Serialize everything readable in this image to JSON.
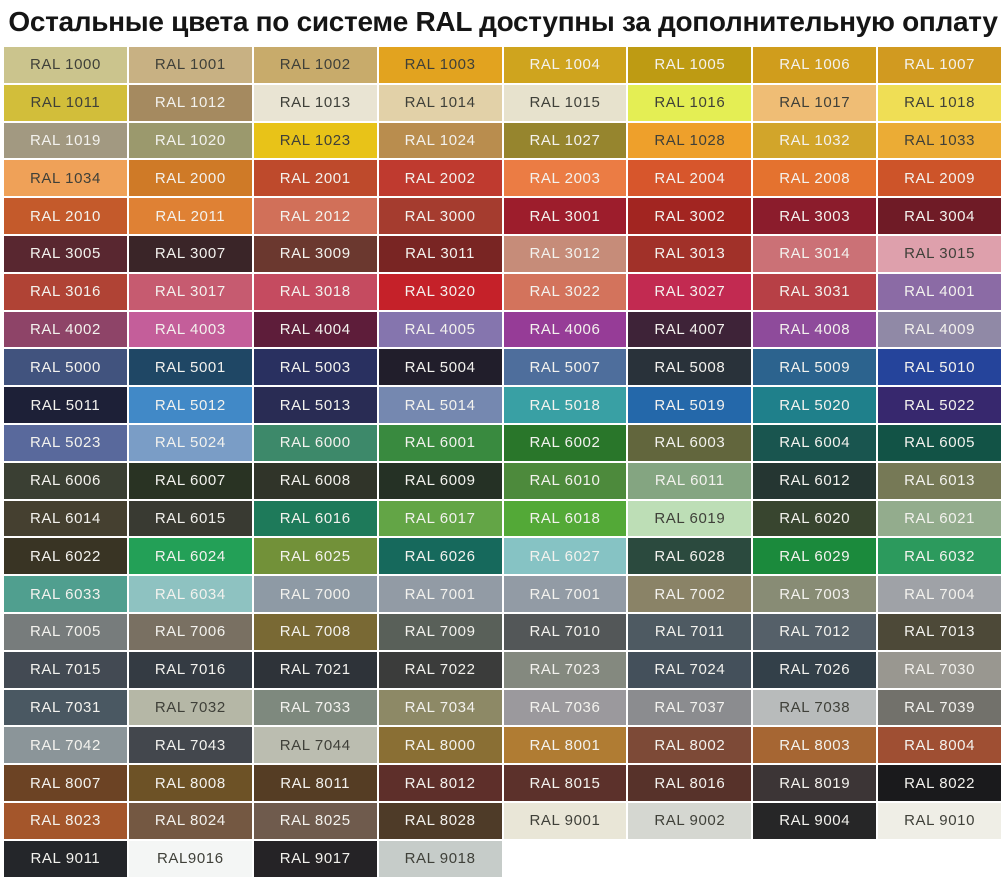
{
  "title": "Остальные цвета по системе RAL доступны за дополнительную оплату",
  "palette_meta": {
    "light_text_color": "#f3f2ee",
    "dark_text_color": "#3f4039",
    "background_color": "#ffffff"
  },
  "grid": {
    "rows": [
      [
        {
          "label": "RAL 1000",
          "color": "#CBC48D",
          "text": "dark"
        },
        {
          "label": "RAL 1001",
          "color": "#C8B183",
          "text": "dark"
        },
        {
          "label": "RAL 1002",
          "color": "#C8AB6B",
          "text": "dark"
        },
        {
          "label": "RAL 1003",
          "color": "#E2A31F",
          "text": "dark"
        },
        {
          "label": "RAL 1004",
          "color": "#CFA41E",
          "text": "light"
        },
        {
          "label": "RAL 1005",
          "color": "#BE9B13",
          "text": "light"
        },
        {
          "label": "RAL 1006",
          "color": "#D09D1C",
          "text": "light"
        },
        {
          "label": "RAL 1007",
          "color": "#D19A20",
          "text": "light"
        }
      ],
      [
        {
          "label": "RAL 1011",
          "color": "#D2BE3A",
          "text": "dark"
        },
        {
          "label": "RAL 1012",
          "color": "#A58A60",
          "text": "light"
        },
        {
          "label": "RAL 1013",
          "color": "#E9E4D3",
          "text": "dark"
        },
        {
          "label": "RAL 1014",
          "color": "#E2D1A8",
          "text": "dark"
        },
        {
          "label": "RAL 1015",
          "color": "#E7E2CD",
          "text": "dark"
        },
        {
          "label": "RAL 1016",
          "color": "#E4EE54",
          "text": "dark"
        },
        {
          "label": "RAL 1017",
          "color": "#EFBD75",
          "text": "dark"
        },
        {
          "label": "RAL 1018",
          "color": "#EFDE55",
          "text": "dark"
        }
      ],
      [
        {
          "label": "RAL 1019",
          "color": "#A29981",
          "text": "light"
        },
        {
          "label": "RAL 1020",
          "color": "#9B996D",
          "text": "light"
        },
        {
          "label": "RAL 1023",
          "color": "#E8C318",
          "text": "dark"
        },
        {
          "label": "RAL 1024",
          "color": "#B98D4E",
          "text": "light"
        },
        {
          "label": "RAL 1027",
          "color": "#96852E",
          "text": "light"
        },
        {
          "label": "RAL 1028",
          "color": "#EEA02B",
          "text": "dark"
        },
        {
          "label": "RAL 1032",
          "color": "#D2A52A",
          "text": "light"
        },
        {
          "label": "RAL 1033",
          "color": "#EBAC35",
          "text": "dark"
        }
      ],
      [
        {
          "label": "RAL 1034",
          "color": "#EFA158",
          "text": "dark"
        },
        {
          "label": "RAL 2000",
          "color": "#CF7A27",
          "text": "light"
        },
        {
          "label": "RAL 2001",
          "color": "#BE4A2C",
          "text": "light"
        },
        {
          "label": "RAL 2002",
          "color": "#BF3A2F",
          "text": "light"
        },
        {
          "label": "RAL 2003",
          "color": "#EB7C44",
          "text": "light"
        },
        {
          "label": "RAL 2004",
          "color": "#D7562C",
          "text": "light"
        },
        {
          "label": "RAL 2008",
          "color": "#E4722F",
          "text": "light"
        },
        {
          "label": "RAL 2009",
          "color": "#CD5429",
          "text": "light"
        }
      ],
      [
        {
          "label": "RAL 2010",
          "color": "#C45A2B",
          "text": "light"
        },
        {
          "label": "RAL 2011",
          "color": "#DF8134",
          "text": "light"
        },
        {
          "label": "RAL 2012",
          "color": "#D17059",
          "text": "light"
        },
        {
          "label": "RAL 3000",
          "color": "#A53C2F",
          "text": "light"
        },
        {
          "label": "RAL 3001",
          "color": "#9D1D2C",
          "text": "light"
        },
        {
          "label": "RAL 3002",
          "color": "#A22521",
          "text": "light"
        },
        {
          "label": "RAL 3003",
          "color": "#8B1C2C",
          "text": "light"
        },
        {
          "label": "RAL 3004",
          "color": "#6F1B26",
          "text": "light"
        }
      ],
      [
        {
          "label": "RAL 3005",
          "color": "#592730",
          "text": "light"
        },
        {
          "label": "RAL 3007",
          "color": "#3A2528",
          "text": "light"
        },
        {
          "label": "RAL 3009",
          "color": "#6B382F",
          "text": "light"
        },
        {
          "label": "RAL 3011",
          "color": "#792523",
          "text": "light"
        },
        {
          "label": "RAL 3012",
          "color": "#C68C79",
          "text": "light"
        },
        {
          "label": "RAL 3013",
          "color": "#A13129",
          "text": "light"
        },
        {
          "label": "RAL 3014",
          "color": "#CB7176",
          "text": "light"
        },
        {
          "label": "RAL 3015",
          "color": "#DEA0AC",
          "text": "dark"
        }
      ],
      [
        {
          "label": "RAL 3016",
          "color": "#B04335",
          "text": "light"
        },
        {
          "label": "RAL 3017",
          "color": "#C65B70",
          "text": "light"
        },
        {
          "label": "RAL 3018",
          "color": "#C54B60",
          "text": "light"
        },
        {
          "label": "RAL 3020",
          "color": "#C52129",
          "text": "light"
        },
        {
          "label": "RAL 3022",
          "color": "#D3735C",
          "text": "light"
        },
        {
          "label": "RAL 3027",
          "color": "#C22A51",
          "text": "light"
        },
        {
          "label": "RAL 3031",
          "color": "#B74046",
          "text": "light"
        },
        {
          "label": "RAL 4001",
          "color": "#8B6BA5",
          "text": "light"
        }
      ],
      [
        {
          "label": "RAL 4002",
          "color": "#8E4468",
          "text": "light"
        },
        {
          "label": "RAL 4003",
          "color": "#C45E9A",
          "text": "light"
        },
        {
          "label": "RAL 4004",
          "color": "#5E1D3A",
          "text": "light"
        },
        {
          "label": "RAL 4005",
          "color": "#8575AE",
          "text": "light"
        },
        {
          "label": "RAL 4006",
          "color": "#963C97",
          "text": "light"
        },
        {
          "label": "RAL 4007",
          "color": "#3E2338",
          "text": "light"
        },
        {
          "label": "RAL 4008",
          "color": "#8E4B9B",
          "text": "light"
        },
        {
          "label": "RAL 4009",
          "color": "#9089A6",
          "text": "light"
        }
      ],
      [
        {
          "label": "RAL 5000",
          "color": "#41537E",
          "text": "light"
        },
        {
          "label": "RAL 5001",
          "color": "#1F4765",
          "text": "light"
        },
        {
          "label": "RAL 5003",
          "color": "#293060",
          "text": "light"
        },
        {
          "label": "RAL 5004",
          "color": "#211E2B",
          "text": "light"
        },
        {
          "label": "RAL 5007",
          "color": "#4E6E9C",
          "text": "light"
        },
        {
          "label": "RAL 5008",
          "color": "#29323A",
          "text": "light"
        },
        {
          "label": "RAL 5009",
          "color": "#2C638E",
          "text": "light"
        },
        {
          "label": "RAL 5010",
          "color": "#25449B",
          "text": "light"
        }
      ],
      [
        {
          "label": "RAL 5011",
          "color": "#1D2037",
          "text": "light"
        },
        {
          "label": "RAL 5012",
          "color": "#4189C7",
          "text": "light"
        },
        {
          "label": "RAL 5013",
          "color": "#292C54",
          "text": "light"
        },
        {
          "label": "RAL 5014",
          "color": "#7588B0",
          "text": "light"
        },
        {
          "label": "RAL 5018",
          "color": "#39A0A4",
          "text": "light"
        },
        {
          "label": "RAL 5019",
          "color": "#2468AA",
          "text": "light"
        },
        {
          "label": "RAL 5020",
          "color": "#1F808B",
          "text": "light"
        },
        {
          "label": "RAL 5022",
          "color": "#37286E",
          "text": "light"
        }
      ],
      [
        {
          "label": "RAL 5023",
          "color": "#59699C",
          "text": "light"
        },
        {
          "label": "RAL 5024",
          "color": "#7A9DC6",
          "text": "light"
        },
        {
          "label": "RAL 6000",
          "color": "#3D896A",
          "text": "light"
        },
        {
          "label": "RAL 6001",
          "color": "#398A3F",
          "text": "light"
        },
        {
          "label": "RAL 6002",
          "color": "#29762A",
          "text": "light"
        },
        {
          "label": "RAL 6003",
          "color": "#62663D",
          "text": "light"
        },
        {
          "label": "RAL 6004",
          "color": "#19554F",
          "text": "light"
        },
        {
          "label": "RAL 6005",
          "color": "#125346",
          "text": "light"
        }
      ],
      [
        {
          "label": "RAL 6006",
          "color": "#3A3F33",
          "text": "light"
        },
        {
          "label": "RAL 6007",
          "color": "#293323",
          "text": "light"
        },
        {
          "label": "RAL 6008",
          "color": "#303429",
          "text": "light"
        },
        {
          "label": "RAL 6009",
          "color": "#253125",
          "text": "light"
        },
        {
          "label": "RAL 6010",
          "color": "#4D8A3C",
          "text": "light"
        },
        {
          "label": "RAL 6011",
          "color": "#84A581",
          "text": "light"
        },
        {
          "label": "RAL 6012",
          "color": "#253632",
          "text": "light"
        },
        {
          "label": "RAL 6013",
          "color": "#767956",
          "text": "light"
        }
      ],
      [
        {
          "label": "RAL 6014",
          "color": "#454030",
          "text": "light"
        },
        {
          "label": "RAL 6015",
          "color": "#393A32",
          "text": "light"
        },
        {
          "label": "RAL 6016",
          "color": "#1E7A5A",
          "text": "light"
        },
        {
          "label": "RAL 6017",
          "color": "#63A546",
          "text": "light"
        },
        {
          "label": "RAL 6018",
          "color": "#53A937",
          "text": "light"
        },
        {
          "label": "RAL 6019",
          "color": "#BDDEB6",
          "text": "dark"
        },
        {
          "label": "RAL 6020",
          "color": "#38452F",
          "text": "light"
        },
        {
          "label": "RAL 6021",
          "color": "#93AC8D",
          "text": "light"
        }
      ],
      [
        {
          "label": "RAL 6022",
          "color": "#393424",
          "text": "light"
        },
        {
          "label": "RAL 6024",
          "color": "#23A057",
          "text": "light"
        },
        {
          "label": "RAL 6025",
          "color": "#729139",
          "text": "light"
        },
        {
          "label": "RAL 6026",
          "color": "#16695C",
          "text": "light"
        },
        {
          "label": "RAL 6027",
          "color": "#86C3C4",
          "text": "light"
        },
        {
          "label": "RAL 6028",
          "color": "#2B4A3E",
          "text": "light"
        },
        {
          "label": "RAL 6029",
          "color": "#1B8A3C",
          "text": "light"
        },
        {
          "label": "RAL 6032",
          "color": "#2C9A5D",
          "text": "light"
        }
      ],
      [
        {
          "label": "RAL 6033",
          "color": "#509F8F",
          "text": "light"
        },
        {
          "label": "RAL 6034",
          "color": "#8EC2C1",
          "text": "light"
        },
        {
          "label": "RAL 7000",
          "color": "#8E9AA5",
          "text": "light"
        },
        {
          "label": "RAL 7001",
          "color": "#929BA5",
          "text": "light"
        },
        {
          "label": "RAL 7001",
          "color": "#929BA5",
          "text": "light"
        },
        {
          "label": "RAL 7002",
          "color": "#8A8367",
          "text": "light"
        },
        {
          "label": "RAL 7003",
          "color": "#888C75",
          "text": "light"
        },
        {
          "label": "RAL 7004",
          "color": "#9FA2A7",
          "text": "light"
        }
      ],
      [
        {
          "label": "RAL 7005",
          "color": "#777C7C",
          "text": "light"
        },
        {
          "label": "RAL 7006",
          "color": "#797062",
          "text": "light"
        },
        {
          "label": "RAL 7008",
          "color": "#796934",
          "text": "light"
        },
        {
          "label": "RAL 7009",
          "color": "#596059",
          "text": "light"
        },
        {
          "label": "RAL 7010",
          "color": "#535758",
          "text": "light"
        },
        {
          "label": "RAL 7011",
          "color": "#4E5A62",
          "text": "light"
        },
        {
          "label": "RAL 7012",
          "color": "#556069",
          "text": "light"
        },
        {
          "label": "RAL 7013",
          "color": "#4D4938",
          "text": "light"
        }
      ],
      [
        {
          "label": "RAL 7015",
          "color": "#434A53",
          "text": "light"
        },
        {
          "label": "RAL 7016",
          "color": "#343B43",
          "text": "light"
        },
        {
          "label": "RAL 7021",
          "color": "#2E3339",
          "text": "light"
        },
        {
          "label": "RAL 7022",
          "color": "#3B3C3B",
          "text": "light"
        },
        {
          "label": "RAL 7023",
          "color": "#84897F",
          "text": "light"
        },
        {
          "label": "RAL 7024",
          "color": "#44505B",
          "text": "light"
        },
        {
          "label": "RAL 7026",
          "color": "#334049",
          "text": "light"
        },
        {
          "label": "RAL 7030",
          "color": "#999790",
          "text": "light"
        }
      ],
      [
        {
          "label": "RAL 7031",
          "color": "#4A5862",
          "text": "light"
        },
        {
          "label": "RAL 7032",
          "color": "#B5B7A6",
          "text": "dark"
        },
        {
          "label": "RAL 7033",
          "color": "#7E897E",
          "text": "light"
        },
        {
          "label": "RAL 7034",
          "color": "#8D8966",
          "text": "light"
        },
        {
          "label": "RAL 7036",
          "color": "#9B999D",
          "text": "light"
        },
        {
          "label": "RAL 7037",
          "color": "#8B8C8F",
          "text": "light"
        },
        {
          "label": "RAL 7038",
          "color": "#B8BBBB",
          "text": "dark"
        },
        {
          "label": "RAL 7039",
          "color": "#72716B",
          "text": "light"
        }
      ],
      [
        {
          "label": "RAL 7042",
          "color": "#8B9599",
          "text": "light"
        },
        {
          "label": "RAL 7043",
          "color": "#43474D",
          "text": "light"
        },
        {
          "label": "RAL 7044",
          "color": "#BBBDB0",
          "text": "dark"
        },
        {
          "label": "RAL 8000",
          "color": "#8A6F34",
          "text": "light"
        },
        {
          "label": "RAL 8001",
          "color": "#B07C33",
          "text": "light"
        },
        {
          "label": "RAL 8002",
          "color": "#7D4A37",
          "text": "light"
        },
        {
          "label": "RAL 8003",
          "color": "#A66633",
          "text": "light"
        },
        {
          "label": "RAL 8004",
          "color": "#9F4F33",
          "text": "light"
        }
      ],
      [
        {
          "label": "RAL 8007",
          "color": "#6C4324",
          "text": "light"
        },
        {
          "label": "RAL 8008",
          "color": "#6D5226",
          "text": "light"
        },
        {
          "label": "RAL 8011",
          "color": "#553D24",
          "text": "light"
        },
        {
          "label": "RAL 8012",
          "color": "#5E2F2A",
          "text": "light"
        },
        {
          "label": "RAL 8015",
          "color": "#5C312B",
          "text": "light"
        },
        {
          "label": "RAL 8016",
          "color": "#57322A",
          "text": "light"
        },
        {
          "label": "RAL 8019",
          "color": "#3C3536",
          "text": "light"
        },
        {
          "label": "RAL 8022",
          "color": "#1A1A1C",
          "text": "light"
        }
      ],
      [
        {
          "label": "RAL 8023",
          "color": "#A4562B",
          "text": "light"
        },
        {
          "label": "RAL 8024",
          "color": "#745842",
          "text": "light"
        },
        {
          "label": "RAL 8025",
          "color": "#6F5B4D",
          "text": "light"
        },
        {
          "label": "RAL 8028",
          "color": "#4E3B28",
          "text": "light"
        },
        {
          "label": "RAL 9001",
          "color": "#E9E6D7",
          "text": "dark"
        },
        {
          "label": "RAL 9002",
          "color": "#D5D7D1",
          "text": "dark"
        },
        {
          "label": "RAL 9004",
          "color": "#262627",
          "text": "light"
        },
        {
          "label": "RAL 9010",
          "color": "#EFEEE6",
          "text": "dark"
        }
      ],
      [
        {
          "label": "RAL 9011",
          "color": "#24262A",
          "text": "light"
        },
        {
          "label": "RAL9016",
          "color": "#F4F6F5",
          "text": "dark"
        },
        {
          "label": "RAL 9017",
          "color": "#252326",
          "text": "light"
        },
        {
          "label": "RAL 9018",
          "color": "#C6CCC9",
          "text": "dark"
        }
      ]
    ]
  }
}
